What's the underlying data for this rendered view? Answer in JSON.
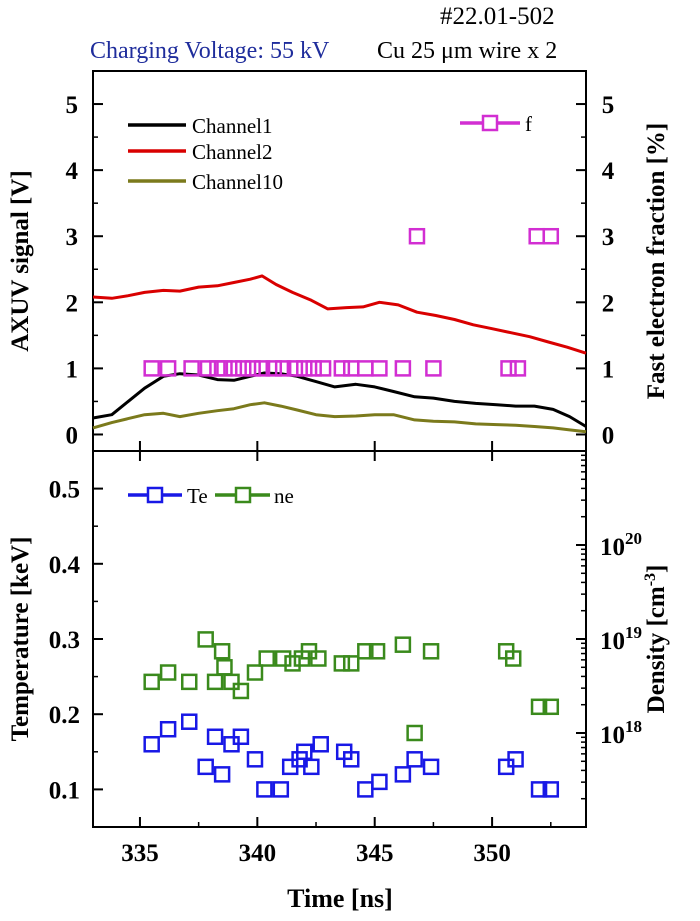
{
  "header": {
    "shot": "#22.01-502",
    "voltage": "Charging Voltage: 55 kV",
    "wire": "Cu 25 μm wire x 2"
  },
  "colors": {
    "channel1": "#000000",
    "channel2": "#d90000",
    "channel10": "#7b7a1c",
    "f": "#d22ed2",
    "te": "#1818e6",
    "ne": "#3a8a1c",
    "voltage_text": "#1f2d9c"
  },
  "chart_data": [
    {
      "type": "line",
      "panel": "top",
      "ylabel": "AXUV signal [V]",
      "y2label": "Fast electron fraction [%]",
      "xlim": [
        333,
        354
      ],
      "ylim": [
        -0.25,
        5.5
      ],
      "y2lim": [
        -0.25,
        5.5
      ],
      "yticks": [
        0,
        1,
        2,
        3,
        4,
        5
      ],
      "y2ticks": [
        0,
        1,
        2,
        3,
        4,
        5
      ],
      "legend": "top-left",
      "series": [
        {
          "name": "Channel1",
          "axis": "left",
          "x": [
            333,
            333.8,
            334.5,
            335.2,
            336,
            336.7,
            337.5,
            338.3,
            339,
            339.7,
            340.3,
            341,
            341.7,
            342.5,
            343.3,
            344.2,
            345,
            345.8,
            346.7,
            347.5,
            348.4,
            349.3,
            350.2,
            351,
            351.8,
            352.6,
            353.3,
            354
          ],
          "y": [
            0.25,
            0.3,
            0.5,
            0.7,
            0.88,
            0.92,
            0.9,
            0.83,
            0.82,
            0.88,
            0.93,
            0.92,
            0.88,
            0.8,
            0.72,
            0.76,
            0.72,
            0.65,
            0.57,
            0.55,
            0.5,
            0.47,
            0.45,
            0.43,
            0.43,
            0.38,
            0.27,
            0.12
          ]
        },
        {
          "name": "Channel2",
          "axis": "left",
          "x": [
            333,
            333.8,
            334.5,
            335.2,
            336,
            336.7,
            337.5,
            338.3,
            339,
            339.7,
            340.2,
            340.8,
            341.5,
            342.3,
            343,
            343.8,
            344.5,
            345.2,
            346,
            346.8,
            347.6,
            348.4,
            349.2,
            350,
            350.8,
            351.6,
            352.4,
            353.2,
            354
          ],
          "y": [
            2.08,
            2.06,
            2.1,
            2.15,
            2.18,
            2.17,
            2.23,
            2.25,
            2.3,
            2.35,
            2.4,
            2.27,
            2.15,
            2.03,
            1.9,
            1.92,
            1.93,
            2.0,
            1.96,
            1.85,
            1.8,
            1.74,
            1.66,
            1.6,
            1.54,
            1.48,
            1.4,
            1.32,
            1.23
          ]
        },
        {
          "name": "Channel10",
          "axis": "left",
          "x": [
            333,
            333.8,
            334.5,
            335.2,
            336,
            336.7,
            337.5,
            338.3,
            339,
            339.7,
            340.3,
            341,
            341.7,
            342.5,
            343.3,
            344.2,
            345,
            345.8,
            346.7,
            347.5,
            348.4,
            349.3,
            350.2,
            351,
            351.8,
            352.6,
            353.3,
            354
          ],
          "y": [
            0.1,
            0.18,
            0.24,
            0.3,
            0.32,
            0.27,
            0.32,
            0.36,
            0.39,
            0.45,
            0.48,
            0.43,
            0.37,
            0.3,
            0.27,
            0.28,
            0.3,
            0.3,
            0.22,
            0.2,
            0.19,
            0.16,
            0.15,
            0.14,
            0.12,
            0.1,
            0.07,
            0.04
          ]
        },
        {
          "name": "f",
          "axis": "right",
          "marker": "square",
          "x": [
            335.5,
            336.2,
            337.2,
            337.9,
            338.3,
            338.6,
            339.0,
            339.4,
            339.8,
            340.2,
            340.7,
            341.1,
            341.6,
            342.0,
            342.4,
            342.8,
            343.6,
            344.0,
            344.6,
            345.2,
            346.2,
            346.8,
            347.5,
            350.7,
            351.1,
            351.9,
            352.5
          ],
          "y": [
            1,
            1,
            1,
            1,
            1,
            1,
            1,
            1,
            1,
            1,
            1,
            1,
            1,
            1,
            1,
            1,
            1,
            1,
            1,
            1,
            1,
            3,
            1,
            1,
            1,
            3,
            3
          ]
        }
      ]
    },
    {
      "type": "scatter",
      "panel": "bottom",
      "xlabel": "Time [ns]",
      "ylabel": "Temperature [keV]",
      "y2label": "Density [cm-3]",
      "y2label_unit": "Density [cm",
      "y2label_exp": "-3",
      "y2label_close": "]",
      "xlim": [
        333,
        354
      ],
      "ylim": [
        0.05,
        0.55
      ],
      "yticks": [
        0.1,
        0.2,
        0.3,
        0.4,
        0.5
      ],
      "y2lim": [
        1e+17,
        1e+21
      ],
      "y2scale": "log",
      "y2ticks": [
        "10^18",
        "10^19",
        "10^20"
      ],
      "xticks": [
        335,
        340,
        345,
        350
      ],
      "legend": "top-left",
      "series": [
        {
          "name": "Te",
          "axis": "left",
          "marker": "square",
          "x": [
            335.5,
            336.2,
            337.1,
            337.8,
            338.2,
            338.5,
            338.9,
            339.3,
            339.9,
            340.3,
            341.0,
            341.4,
            341.8,
            342.0,
            342.3,
            342.7,
            343.7,
            344.0,
            344.6,
            345.2,
            346.2,
            346.7,
            347.4,
            350.6,
            351.0,
            352.0,
            352.5
          ],
          "y": [
            0.16,
            0.18,
            0.19,
            0.13,
            0.17,
            0.12,
            0.16,
            0.17,
            0.14,
            0.1,
            0.1,
            0.13,
            0.14,
            0.15,
            0.13,
            0.16,
            0.15,
            0.14,
            0.1,
            0.11,
            0.12,
            0.14,
            0.13,
            0.13,
            0.14,
            0.1,
            0.1
          ]
        },
        {
          "name": "ne",
          "axis": "right",
          "marker": "square",
          "x": [
            335.5,
            336.2,
            337.1,
            337.8,
            338.2,
            338.5,
            338.6,
            338.9,
            339.3,
            339.9,
            340.4,
            341.1,
            341.5,
            341.9,
            342.2,
            342.6,
            343.6,
            344.0,
            344.6,
            345.1,
            346.2,
            346.7,
            347.4,
            350.6,
            350.9,
            352.0,
            352.5
          ],
          "y": [
            3.5e+18,
            4.4e+18,
            3.5e+18,
            9.9e+18,
            3.5e+18,
            7.4e+18,
            5e+18,
            3.5e+18,
            2.8e+18,
            4.4e+18,
            6.2e+18,
            6.2e+18,
            5.5e+18,
            6.2e+18,
            7.4e+18,
            6.2e+18,
            5.5e+18,
            5.5e+18,
            7.4e+18,
            7.4e+18,
            8.7e+18,
            1e+18,
            7.4e+18,
            7.4e+18,
            6.2e+18,
            1.9e+18,
            1.9e+18
          ]
        }
      ]
    }
  ]
}
